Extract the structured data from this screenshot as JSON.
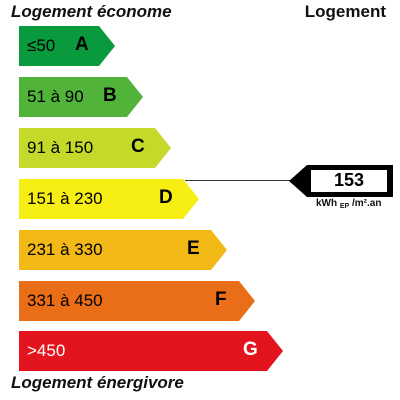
{
  "header": {
    "left_title": "Logement économe",
    "right_title": "Logement"
  },
  "footer": {
    "left_title": "Logement énergivore"
  },
  "bands": [
    {
      "range": "≤50",
      "letter": "A",
      "color": "#0a9a3e",
      "text_color": "#000000"
    },
    {
      "range": "51 à 90",
      "letter": "B",
      "color": "#52b33b",
      "text_color": "#000000"
    },
    {
      "range": "91 à 150",
      "letter": "C",
      "color": "#c4d92a",
      "text_color": "#000000"
    },
    {
      "range": "151 à 230",
      "letter": "D",
      "color": "#f7ee14",
      "text_color": "#000000"
    },
    {
      "range": "231 à 330",
      "letter": "E",
      "color": "#f2b816",
      "text_color": "#000000"
    },
    {
      "range": "331 à 450",
      "letter": "F",
      "color": "#ea6e18",
      "text_color": "#000000"
    },
    {
      "range": ">450",
      "letter": "G",
      "color": "#e4141e",
      "text_color": "#ffffff"
    }
  ],
  "indicator": {
    "value": "153",
    "unit_main": "kWh",
    "unit_sub": "EP",
    "unit_suffix": "/m².an",
    "class": "D",
    "color": "#000000"
  }
}
